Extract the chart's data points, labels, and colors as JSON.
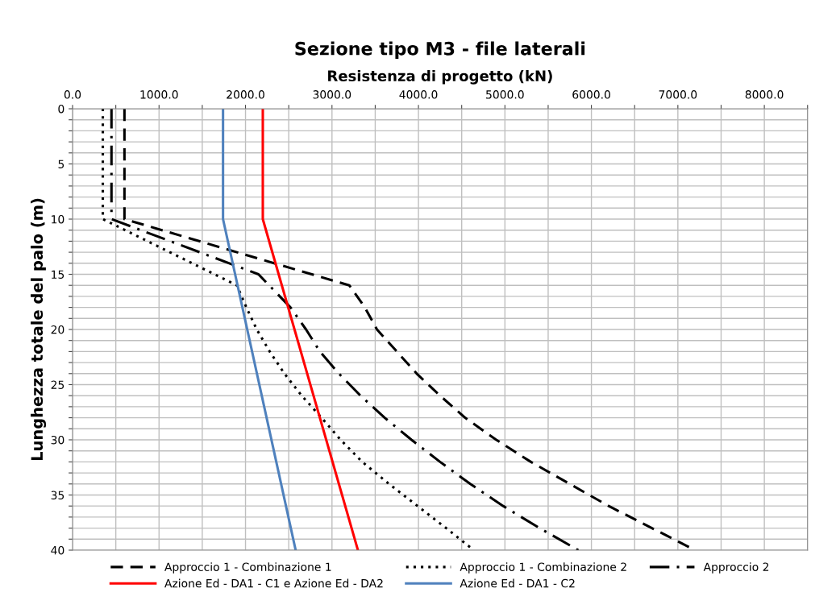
{
  "chart_data": {
    "type": "line",
    "title": "Sezione tipo M3 - file laterali",
    "xlabel": "Resistenza di progetto (kN)",
    "ylabel": "Lunghezza totale del palo (m)",
    "orientation": "horizontal",
    "xlim": [
      0,
      8500
    ],
    "xticks": [
      {
        "value": 0,
        "label": "0.0"
      },
      {
        "value": 500,
        "label": null
      },
      {
        "value": 1000,
        "label": "1000.0"
      },
      {
        "value": 1500,
        "label": null
      },
      {
        "value": 2000,
        "label": "2000.0"
      },
      {
        "value": 2500,
        "label": null
      },
      {
        "value": 3000,
        "label": "3000.0"
      },
      {
        "value": 3500,
        "label": null
      },
      {
        "value": 4000,
        "label": "4000.0"
      },
      {
        "value": 4500,
        "label": null
      },
      {
        "value": 5000,
        "label": "5000.0"
      },
      {
        "value": 5500,
        "label": null
      },
      {
        "value": 6000,
        "label": "6000.0"
      },
      {
        "value": 6500,
        "label": null
      },
      {
        "value": 7000,
        "label": "7000.0"
      },
      {
        "value": 7500,
        "label": null
      },
      {
        "value": 8000,
        "label": "8000.0"
      },
      {
        "value": 8500,
        "label": null
      }
    ],
    "ylim": [
      40,
      0
    ],
    "yticks": [
      0,
      {
        "value": 1,
        "label": null
      },
      {
        "value": 2,
        "label": null
      },
      {
        "value": 3,
        "label": null
      },
      {
        "value": 4,
        "label": null
      },
      5,
      {
        "value": 6,
        "label": null
      },
      {
        "value": 7,
        "label": null
      },
      {
        "value": 8,
        "label": null
      },
      {
        "value": 9,
        "label": null
      },
      10,
      {
        "value": 11,
        "label": null
      },
      {
        "value": 12,
        "label": null
      },
      {
        "value": 13,
        "label": null
      },
      {
        "value": 14,
        "label": null
      },
      15,
      {
        "value": 16,
        "label": null
      },
      {
        "value": 17,
        "label": null
      },
      {
        "value": 18,
        "label": null
      },
      {
        "value": 19,
        "label": null
      },
      20,
      {
        "value": 21,
        "label": null
      },
      {
        "value": 22,
        "label": null
      },
      {
        "value": 23,
        "label": null
      },
      {
        "value": 24,
        "label": null
      },
      25,
      {
        "value": 26,
        "label": null
      },
      {
        "value": 27,
        "label": null
      },
      {
        "value": 28,
        "label": null
      },
      {
        "value": 29,
        "label": null
      },
      30,
      {
        "value": 31,
        "label": null
      },
      {
        "value": 32,
        "label": null
      },
      {
        "value": 33,
        "label": null
      },
      {
        "value": 34,
        "label": null
      },
      35,
      {
        "value": 36,
        "label": null
      },
      {
        "value": 37,
        "label": null
      },
      {
        "value": 38,
        "label": null
      },
      {
        "value": 39,
        "label": null
      },
      40
    ],
    "grid": true,
    "legend": "bottom",
    "marker": "none",
    "series": [
      {
        "name": "Approccio 1 - Combinazione 1",
        "color": "#000000",
        "line_style": "dashed",
        "values": [
          600,
          600,
          3200,
          3380,
          3520,
          3750,
          3980,
          4250,
          4540,
          4900,
          5300,
          5750,
          6200,
          6700,
          7200
        ],
        "x": [
          0,
          10,
          16,
          18,
          20,
          22,
          24,
          26,
          28,
          30,
          32,
          34,
          36,
          38,
          40
        ]
      },
      {
        "name": "Approccio 1 - Combinazione 2",
        "color": "#000000",
        "line_style": "dotted",
        "values": [
          350,
          350,
          1900,
          2010,
          2130,
          2280,
          2450,
          2650,
          2880,
          3100,
          3350,
          3660,
          3990,
          4320,
          4640
        ],
        "x": [
          0,
          10,
          16,
          18,
          20,
          22,
          24,
          26,
          28,
          30,
          32,
          34,
          36,
          38,
          40
        ]
      },
      {
        "name": "Approccio 2",
        "color": "#000000",
        "line_style": "dashdot",
        "values": [
          450,
          450,
          2150,
          2520,
          2700,
          2860,
          3080,
          3330,
          3610,
          3920,
          4250,
          4600,
          4980,
          5400,
          5850
        ],
        "x": [
          0,
          10,
          15,
          18,
          20,
          22,
          24,
          26,
          28,
          30,
          32,
          34,
          36,
          38,
          40
        ]
      },
      {
        "name": "Azione Ed - DA1 - C1 e Azione Ed - DA2",
        "color": "#ff0000",
        "line_style": "solid",
        "values": [
          2200,
          2200,
          3300
        ],
        "x": [
          0,
          10,
          40
        ]
      },
      {
        "name": "Azione Ed - DA1 - C2",
        "color": "#4f81bd",
        "line_style": "solid",
        "values": [
          1740,
          1740,
          2580
        ],
        "x": [
          0,
          10,
          40
        ]
      }
    ]
  }
}
